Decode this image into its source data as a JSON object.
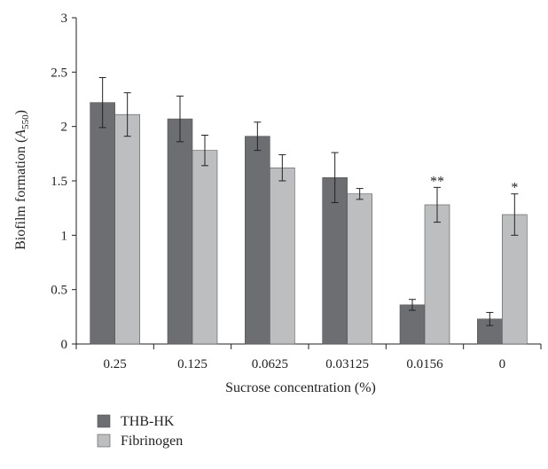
{
  "chart_data": {
    "type": "bar",
    "categories": [
      "0.25",
      "0.125",
      "0.0625",
      "0.03125",
      "0.0156",
      "0"
    ],
    "series": [
      {
        "name": "THB-HK",
        "color": "#6d6e71",
        "values": [
          2.22,
          2.07,
          1.91,
          1.53,
          0.36,
          0.23
        ],
        "errors": [
          0.23,
          0.21,
          0.13,
          0.23,
          0.05,
          0.06
        ]
      },
      {
        "name": "Fibrinogen",
        "color": "#bdbec0",
        "values": [
          2.11,
          1.78,
          1.62,
          1.38,
          1.28,
          1.19
        ],
        "errors": [
          0.2,
          0.14,
          0.12,
          0.05,
          0.16,
          0.19
        ]
      }
    ],
    "annotations": [
      {
        "category_index": 4,
        "series_index": 1,
        "text": "**"
      },
      {
        "category_index": 5,
        "series_index": 1,
        "text": "*"
      }
    ],
    "xlabel": "Sucrose concentration (%)",
    "ylabel_main": "Biofilm formation (",
    "ylabel_var": "A",
    "ylabel_sub": "550",
    "ylabel_end": ")",
    "ylim": [
      0,
      3
    ],
    "yticks": [
      "0",
      "0.5",
      "1",
      "1.5",
      "2",
      "2.5",
      "3"
    ],
    "grid": false,
    "legend_position": "bottom-left"
  }
}
